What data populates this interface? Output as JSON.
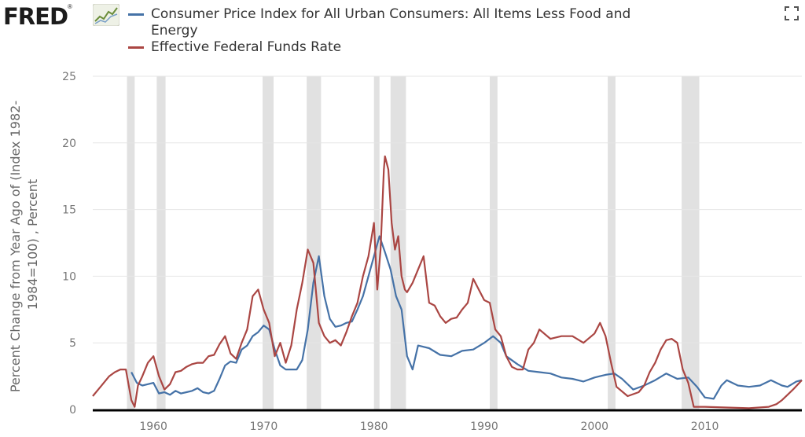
{
  "header": {
    "logo_text": "FRED",
    "logo_mark": "®"
  },
  "icons": {
    "logo_graph": "line-graph-icon",
    "expand": "fullscreen-expand-icon"
  },
  "chart_data": {
    "type": "line",
    "title": "",
    "xlabel": "",
    "ylabel": "Percent Change from Year Ago of (Index 1982-1984=100) , Percent",
    "ylabel_lines": [
      "Percent Change from Year Ago of (Index 1982-",
      "1984=100) , Percent"
    ],
    "xlim": [
      1954.5,
      2018.8
    ],
    "ylim": [
      0,
      25
    ],
    "yticks": [
      0,
      5,
      10,
      15,
      20,
      25
    ],
    "xticks": [
      1960,
      1970,
      1980,
      1990,
      2000,
      2010
    ],
    "grid": "horizontal",
    "legend_position": "top",
    "recessions": [
      [
        1957.6,
        1958.3
      ],
      [
        1960.3,
        1961.1
      ],
      [
        1969.9,
        1970.9
      ],
      [
        1973.9,
        1975.2
      ],
      [
        1980.0,
        1980.5
      ],
      [
        1981.5,
        1982.9
      ],
      [
        1990.5,
        1991.2
      ],
      [
        2001.2,
        2001.9
      ],
      [
        2007.9,
        2009.5
      ]
    ],
    "series": [
      {
        "name": "Consumer Price Index for All Urban Consumers: All Items Less Food and Energy",
        "color": "#4572a7",
        "x": [
          1958.0,
          1958.5,
          1959.0,
          1959.5,
          1960.0,
          1960.5,
          1961.0,
          1961.5,
          1962.0,
          1962.5,
          1963.0,
          1963.5,
          1964.0,
          1964.5,
          1965.0,
          1965.5,
          1966.0,
          1966.5,
          1967.0,
          1967.5,
          1968.0,
          1968.5,
          1969.0,
          1969.5,
          1970.0,
          1970.5,
          1971.0,
          1971.5,
          1972.0,
          1972.5,
          1973.0,
          1973.5,
          1974.0,
          1974.5,
          1975.0,
          1975.5,
          1976.0,
          1976.5,
          1977.0,
          1977.5,
          1978.0,
          1978.5,
          1979.0,
          1979.5,
          1980.0,
          1980.5,
          1981.0,
          1981.5,
          1982.0,
          1982.5,
          1983.0,
          1983.5,
          1984.0,
          1985.0,
          1986.0,
          1987.0,
          1988.0,
          1989.0,
          1990.0,
          1990.8,
          1991.5,
          1992.0,
          1993.0,
          1994.0,
          1995.0,
          1996.0,
          1997.0,
          1998.0,
          1999.0,
          2000.0,
          2001.0,
          2001.8,
          2002.5,
          2003.5,
          2004.5,
          2005.5,
          2006.5,
          2007.5,
          2008.5,
          2009.3,
          2010.0,
          2010.8,
          2011.5,
          2012.0,
          2013.0,
          2014.0,
          2015.0,
          2016.0,
          2017.0,
          2017.5,
          2018.3,
          2018.8
        ],
        "y": [
          2.8,
          2.0,
          1.8,
          1.9,
          2.0,
          1.2,
          1.3,
          1.1,
          1.4,
          1.2,
          1.3,
          1.4,
          1.6,
          1.3,
          1.2,
          1.4,
          2.3,
          3.3,
          3.6,
          3.5,
          4.5,
          4.8,
          5.5,
          5.8,
          6.3,
          6.0,
          4.5,
          3.3,
          3.0,
          3.0,
          3.0,
          3.7,
          6.0,
          9.5,
          11.5,
          8.5,
          6.8,
          6.2,
          6.3,
          6.5,
          6.6,
          7.5,
          8.5,
          10.0,
          11.5,
          13.0,
          11.8,
          10.5,
          8.5,
          7.5,
          4.0,
          3.0,
          4.8,
          4.6,
          4.1,
          4.0,
          4.4,
          4.5,
          5.0,
          5.5,
          5.0,
          4.0,
          3.4,
          2.9,
          2.8,
          2.7,
          2.4,
          2.3,
          2.1,
          2.4,
          2.6,
          2.7,
          2.3,
          1.5,
          1.8,
          2.2,
          2.7,
          2.3,
          2.4,
          1.7,
          0.9,
          0.8,
          1.8,
          2.2,
          1.8,
          1.7,
          1.8,
          2.2,
          1.8,
          1.7,
          2.1,
          2.2
        ]
      },
      {
        "name": "Effective Federal Funds Rate",
        "color": "#aa4643",
        "x": [
          1954.5,
          1955.0,
          1955.5,
          1956.0,
          1956.5,
          1957.0,
          1957.5,
          1958.0,
          1958.3,
          1958.6,
          1959.0,
          1959.5,
          1960.0,
          1960.5,
          1961.0,
          1961.5,
          1962.0,
          1962.5,
          1963.0,
          1963.5,
          1964.0,
          1964.5,
          1965.0,
          1965.5,
          1966.0,
          1966.5,
          1967.0,
          1967.5,
          1968.0,
          1968.5,
          1969.0,
          1969.5,
          1970.0,
          1970.5,
          1971.0,
          1971.5,
          1972.0,
          1972.5,
          1973.0,
          1973.5,
          1974.0,
          1974.5,
          1975.0,
          1975.5,
          1976.0,
          1976.5,
          1977.0,
          1977.5,
          1978.0,
          1978.5,
          1979.0,
          1979.5,
          1980.0,
          1980.3,
          1980.6,
          1980.9,
          1981.0,
          1981.3,
          1981.6,
          1981.9,
          1982.2,
          1982.5,
          1982.8,
          1983.0,
          1983.5,
          1984.0,
          1984.5,
          1985.0,
          1985.5,
          1986.0,
          1986.5,
          1987.0,
          1987.5,
          1988.0,
          1988.5,
          1989.0,
          1989.5,
          1990.0,
          1990.5,
          1991.0,
          1991.5,
          1992.0,
          1992.5,
          1993.0,
          1993.5,
          1994.0,
          1994.5,
          1995.0,
          1996.0,
          1997.0,
          1998.0,
          1999.0,
          2000.0,
          2000.5,
          2001.0,
          2001.5,
          2002.0,
          2003.0,
          2004.0,
          2004.5,
          2005.0,
          2005.5,
          2006.0,
          2006.5,
          2007.0,
          2007.5,
          2008.0,
          2008.5,
          2009.0,
          2010.0,
          2012.0,
          2014.0,
          2015.8,
          2016.5,
          2017.0,
          2017.5,
          2018.0,
          2018.8
        ],
        "y": [
          1.0,
          1.5,
          2.0,
          2.5,
          2.8,
          3.0,
          3.0,
          0.7,
          0.2,
          1.8,
          2.5,
          3.5,
          4.0,
          2.5,
          1.5,
          1.9,
          2.8,
          2.9,
          3.2,
          3.4,
          3.5,
          3.5,
          4.0,
          4.1,
          4.9,
          5.5,
          4.2,
          3.8,
          5.0,
          6.0,
          8.5,
          9.0,
          7.5,
          6.5,
          4.0,
          5.0,
          3.5,
          4.8,
          7.5,
          9.5,
          12.0,
          11.0,
          6.5,
          5.5,
          5.0,
          5.2,
          4.8,
          5.8,
          7.0,
          8.0,
          10.0,
          11.5,
          14.0,
          9.0,
          12.0,
          18.0,
          19.0,
          18.0,
          14.0,
          12.0,
          13.0,
          10.0,
          9.0,
          8.8,
          9.5,
          10.5,
          11.5,
          8.0,
          7.8,
          7.0,
          6.5,
          6.8,
          6.9,
          7.5,
          8.0,
          9.8,
          9.0,
          8.2,
          8.0,
          6.0,
          5.5,
          4.0,
          3.2,
          3.0,
          3.0,
          4.5,
          5.0,
          6.0,
          5.3,
          5.5,
          5.5,
          5.0,
          5.7,
          6.5,
          5.5,
          3.5,
          1.7,
          1.0,
          1.3,
          1.8,
          2.8,
          3.5,
          4.5,
          5.2,
          5.3,
          5.0,
          3.0,
          2.0,
          0.2,
          0.2,
          0.15,
          0.1,
          0.2,
          0.4,
          0.7,
          1.1,
          1.5,
          2.2
        ]
      }
    ]
  }
}
